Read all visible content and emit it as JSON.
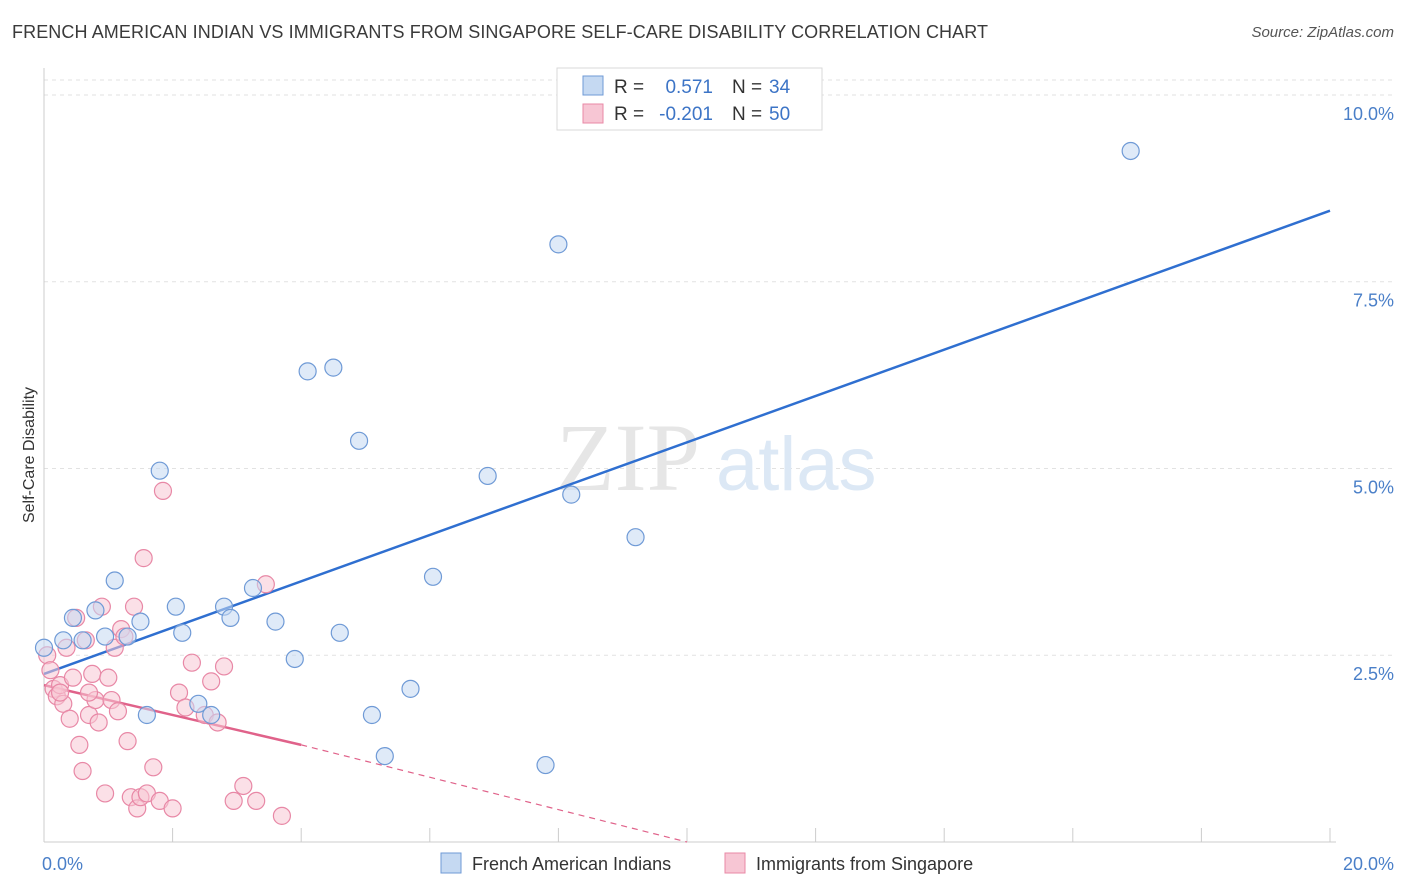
{
  "header": {
    "title": "FRENCH AMERICAN INDIAN VS IMMIGRANTS FROM SINGAPORE SELF-CARE DISABILITY CORRELATION CHART",
    "source": "Source: ZipAtlas.com"
  },
  "watermark": {
    "zip": "ZIP",
    "atlas": "atlas"
  },
  "legend": {
    "row1": {
      "r_label": "R =",
      "r_value": "0.571",
      "n_label": "N =",
      "n_value": "34"
    },
    "row2": {
      "r_label": "R =",
      "r_value": "-0.201",
      "n_label": "N =",
      "n_value": "50"
    }
  },
  "colors": {
    "blue_fill": "#c5d9f2",
    "blue_stroke": "#6f9ad6",
    "blue_line": "#2f6fd0",
    "pink_fill": "#f7c6d4",
    "pink_stroke": "#e888a6",
    "pink_line": "#e0628a",
    "grid": "#e2e2e2",
    "axis_label": "#4a7fc8"
  },
  "chart_data": {
    "type": "scatter",
    "title": "FRENCH AMERICAN INDIAN VS IMMIGRANTS FROM SINGAPORE SELF-CARE DISABILITY CORRELATION CHART",
    "xlabel": "",
    "ylabel": "Self-Care Disability",
    "xlim": [
      0,
      20
    ],
    "ylim": [
      0,
      10.2
    ],
    "x_tick_labels": [
      "0.0%",
      "20.0%"
    ],
    "y_ticks": [
      {
        "value": 2.5,
        "label": "2.5%"
      },
      {
        "value": 5.0,
        "label": "5.0%"
      },
      {
        "value": 7.5,
        "label": "7.5%"
      },
      {
        "value": 10.0,
        "label": "10.0%"
      }
    ],
    "series": [
      {
        "name": "French American Indians",
        "r": 0.571,
        "n": 34,
        "trend": {
          "x0": 0,
          "y0": 2.25,
          "x1": 20,
          "y1": 8.45
        },
        "points": [
          [
            0.0,
            2.6
          ],
          [
            0.3,
            2.7
          ],
          [
            0.45,
            3.0
          ],
          [
            0.6,
            2.7
          ],
          [
            0.8,
            3.1
          ],
          [
            0.95,
            2.75
          ],
          [
            1.1,
            3.5
          ],
          [
            1.3,
            2.75
          ],
          [
            1.5,
            2.95
          ],
          [
            1.6,
            1.7
          ],
          [
            1.8,
            4.97
          ],
          [
            2.05,
            3.15
          ],
          [
            2.15,
            2.8
          ],
          [
            2.4,
            1.85
          ],
          [
            2.6,
            1.7
          ],
          [
            2.8,
            3.15
          ],
          [
            2.9,
            3.0
          ],
          [
            3.25,
            3.4
          ],
          [
            3.6,
            2.95
          ],
          [
            3.9,
            2.45
          ],
          [
            4.1,
            6.3
          ],
          [
            4.5,
            6.35
          ],
          [
            4.6,
            2.8
          ],
          [
            4.9,
            5.37
          ],
          [
            5.1,
            1.7
          ],
          [
            5.3,
            1.15
          ],
          [
            5.7,
            2.05
          ],
          [
            6.05,
            3.55
          ],
          [
            6.9,
            4.9
          ],
          [
            7.8,
            1.03
          ],
          [
            8.0,
            8.0
          ],
          [
            8.2,
            4.65
          ],
          [
            9.2,
            4.08
          ],
          [
            16.9,
            9.25
          ]
        ]
      },
      {
        "name": "Immigrants from Singapore",
        "r": -0.201,
        "n": 50,
        "trend": {
          "x0": 0,
          "y0": 2.1,
          "x1": 4.0,
          "y1": 1.3,
          "dash_x1": 10.0,
          "dash_y1": 0.0
        },
        "points": [
          [
            0.05,
            2.5
          ],
          [
            0.1,
            2.3
          ],
          [
            0.15,
            2.05
          ],
          [
            0.2,
            1.95
          ],
          [
            0.25,
            2.1
          ],
          [
            0.3,
            1.85
          ],
          [
            0.35,
            2.6
          ],
          [
            0.4,
            1.65
          ],
          [
            0.45,
            2.2
          ],
          [
            0.5,
            3.0
          ],
          [
            0.55,
            1.3
          ],
          [
            0.6,
            0.95
          ],
          [
            0.65,
            2.7
          ],
          [
            0.7,
            1.7
          ],
          [
            0.75,
            2.25
          ],
          [
            0.8,
            1.9
          ],
          [
            0.85,
            1.6
          ],
          [
            0.9,
            3.15
          ],
          [
            0.95,
            0.65
          ],
          [
            1.0,
            2.2
          ],
          [
            1.05,
            1.9
          ],
          [
            1.1,
            2.6
          ],
          [
            1.15,
            1.75
          ],
          [
            1.2,
            2.85
          ],
          [
            1.25,
            2.75
          ],
          [
            1.3,
            1.35
          ],
          [
            1.35,
            0.6
          ],
          [
            1.4,
            3.15
          ],
          [
            1.45,
            0.45
          ],
          [
            1.5,
            0.6
          ],
          [
            1.55,
            3.8
          ],
          [
            1.6,
            0.65
          ],
          [
            1.7,
            1.0
          ],
          [
            1.8,
            0.55
          ],
          [
            1.85,
            4.7
          ],
          [
            2.0,
            0.45
          ],
          [
            2.1,
            2.0
          ],
          [
            2.2,
            1.8
          ],
          [
            2.3,
            2.4
          ],
          [
            2.5,
            1.7
          ],
          [
            2.6,
            2.15
          ],
          [
            2.7,
            1.6
          ],
          [
            2.8,
            2.35
          ],
          [
            2.95,
            0.55
          ],
          [
            3.1,
            0.75
          ],
          [
            3.3,
            0.55
          ],
          [
            3.45,
            3.45
          ],
          [
            3.7,
            0.35
          ],
          [
            0.25,
            2.0
          ],
          [
            0.7,
            2.0
          ]
        ]
      }
    ],
    "legend_position": "top-center"
  }
}
